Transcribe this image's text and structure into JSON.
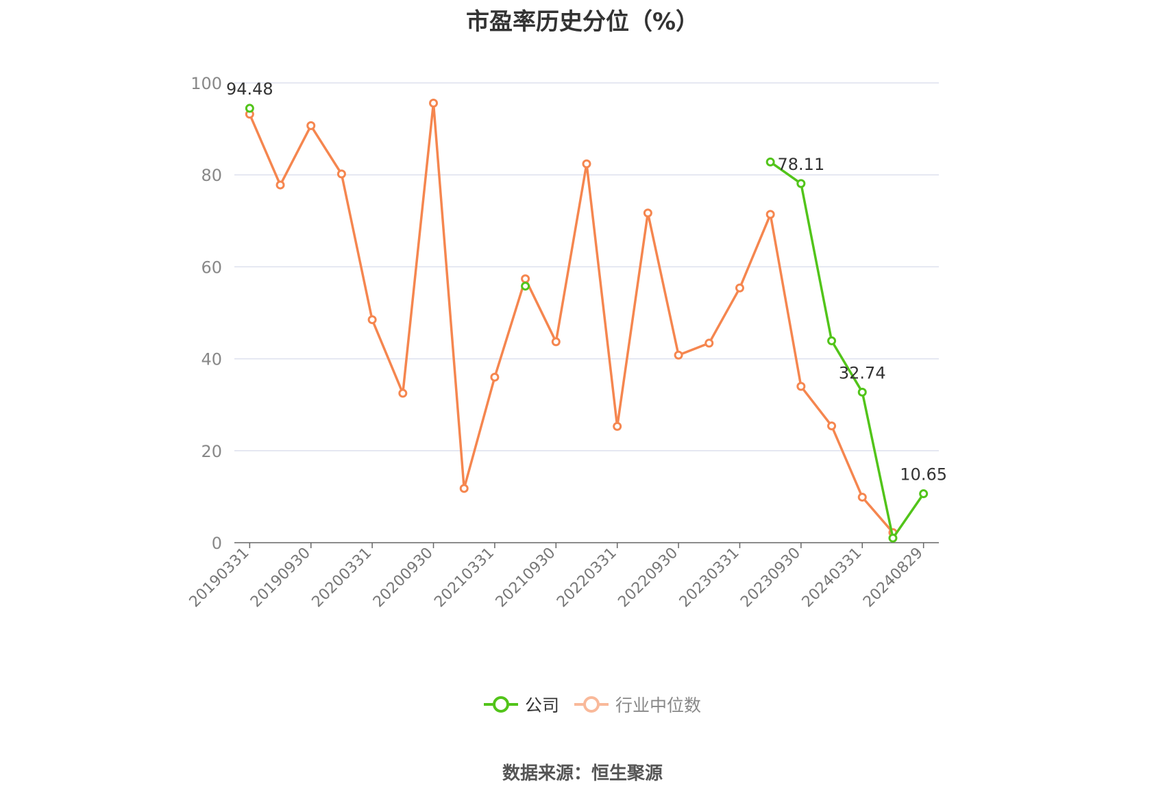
{
  "title": "市盈率历史分位（%）",
  "source": "数据来源：恒生聚源",
  "colors": {
    "company": "#52c41a",
    "industry": "#f5864f",
    "grid": "#dde0ee",
    "axis": "#666666",
    "label": "#333333"
  },
  "legend": [
    {
      "name": "公司",
      "icon": "circle-line-icon"
    },
    {
      "name": "行业中位数",
      "icon": "circle-line-icon"
    }
  ],
  "chart_data": {
    "type": "line",
    "title": "市盈率历史分位（%）",
    "x": [
      "20190331",
      "20190630",
      "20190930",
      "20191231",
      "20200331",
      "20200630",
      "20200930",
      "20201231",
      "20210331",
      "20210630",
      "20210930",
      "20211231",
      "20220331",
      "20220630",
      "20220930",
      "20221231",
      "20230331",
      "20230630",
      "20230930",
      "20231231",
      "20240331",
      "20240630",
      "20240829"
    ],
    "x_tick_labels": [
      "20190331",
      "20190930",
      "20200331",
      "20200930",
      "20210331",
      "20210930",
      "20220331",
      "20220930",
      "20230331",
      "20230930",
      "20240331",
      "20240829"
    ],
    "ylim": [
      0,
      100
    ],
    "y_ticks": [
      0,
      20,
      40,
      60,
      80,
      100
    ],
    "grid": true,
    "legend_position": "bottom",
    "series": [
      {
        "name": "公司",
        "values": [
          94.48,
          null,
          null,
          null,
          null,
          null,
          null,
          null,
          null,
          55.8,
          null,
          null,
          null,
          null,
          null,
          null,
          null,
          82.8,
          78.11,
          43.9,
          32.74,
          1.0,
          10.65
        ],
        "labels": [
          {
            "index": 0,
            "text": "94.48"
          },
          {
            "index": 18,
            "text": "78.11"
          },
          {
            "index": 20,
            "text": "32.74"
          },
          {
            "index": 22,
            "text": "10.65"
          }
        ]
      },
      {
        "name": "行业中位数",
        "values": [
          93.2,
          77.8,
          90.7,
          80.2,
          48.5,
          32.5,
          95.6,
          11.8,
          36.0,
          57.4,
          43.7,
          82.4,
          25.3,
          71.7,
          40.8,
          43.4,
          55.4,
          71.4,
          34.0,
          25.4,
          9.9,
          2.2,
          null
        ]
      }
    ]
  }
}
